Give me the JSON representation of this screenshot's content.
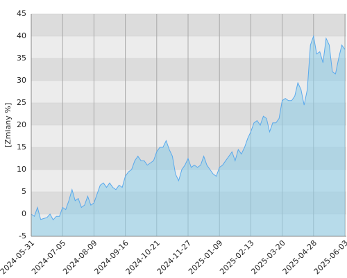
{
  "chart_data": {
    "type": "area",
    "y_label": "[Zmiany %]",
    "categories": [
      "2024-05-31",
      null,
      null,
      null,
      null,
      null,
      null,
      null,
      null,
      null,
      "2024-07-05",
      null,
      null,
      null,
      null,
      null,
      null,
      null,
      null,
      null,
      "2024-08-09",
      null,
      null,
      null,
      null,
      null,
      null,
      null,
      null,
      null,
      "2024-09-16",
      null,
      null,
      null,
      null,
      null,
      null,
      null,
      null,
      null,
      "2024-10-21",
      null,
      null,
      null,
      null,
      null,
      null,
      null,
      null,
      null,
      "2024-11-27",
      null,
      null,
      null,
      null,
      null,
      null,
      null,
      null,
      null,
      "2025-01-09",
      null,
      null,
      null,
      null,
      null,
      null,
      null,
      null,
      null,
      "2025-02-13",
      null,
      null,
      null,
      null,
      null,
      null,
      null,
      null,
      null,
      "2025-03-20",
      null,
      null,
      null,
      null,
      null,
      null,
      null,
      null,
      null,
      "2025-04-28",
      null,
      null,
      null,
      null,
      null,
      null,
      null,
      null,
      null,
      "2025-06-03"
    ],
    "values": [
      0,
      -0.5,
      1.5,
      -1.2,
      -1,
      -0.8,
      0,
      -1.3,
      -0.5,
      -0.5,
      1.5,
      1,
      3,
      5.5,
      3,
      3.5,
      1.5,
      2,
      4,
      2,
      2.5,
      4.5,
      6.5,
      7,
      6,
      7,
      6,
      5.5,
      6.5,
      6,
      8.5,
      9.5,
      10,
      12,
      13,
      12,
      12,
      11,
      11.5,
      12,
      14,
      15,
      15,
      16.5,
      14.5,
      13,
      9,
      7.5,
      10,
      11,
      12.5,
      10.5,
      11,
      10.5,
      11,
      13,
      11,
      10,
      9,
      8.5,
      10.5,
      11,
      12,
      13,
      14,
      12,
      14.5,
      13.5,
      15,
      17,
      18.5,
      20.5,
      21,
      20,
      22,
      21.5,
      18.5,
      20.5,
      20.5,
      21.5,
      25.5,
      26,
      25.5,
      25.5,
      26.5,
      29.5,
      28,
      24.5,
      28,
      38,
      40,
      36,
      36.5,
      34,
      39.5,
      38,
      32,
      31.5,
      35,
      38,
      37
    ],
    "color": "#5aa9ec",
    "ylim": [
      -5,
      45
    ],
    "yticks": [
      -5,
      0,
      5,
      10,
      15,
      20,
      25,
      30,
      35,
      40,
      45
    ],
    "grid": true
  }
}
